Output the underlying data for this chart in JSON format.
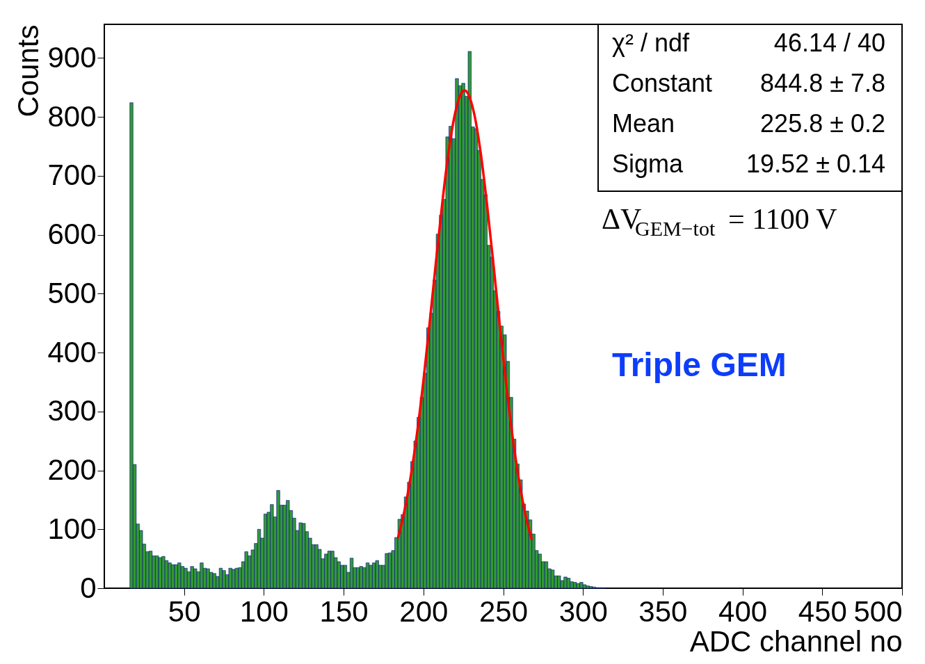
{
  "chart_data": {
    "type": "histogram",
    "xlabel": "ADC channel no",
    "ylabel": "Counts",
    "bins": [
      16,
      18,
      20,
      22,
      24,
      26,
      28,
      30,
      32,
      34,
      36,
      38,
      40,
      42,
      44,
      46,
      48,
      50,
      52,
      54,
      56,
      58,
      60,
      62,
      64,
      66,
      68,
      70,
      72,
      74,
      76,
      78,
      80,
      82,
      84,
      86,
      88,
      90,
      92,
      94,
      96,
      98,
      100,
      102,
      104,
      106,
      108,
      110,
      112,
      114,
      116,
      118,
      120,
      122,
      124,
      126,
      128,
      130,
      132,
      134,
      136,
      138,
      140,
      142,
      144,
      146,
      148,
      150,
      152,
      154,
      156,
      158,
      160,
      162,
      164,
      166,
      168,
      170,
      172,
      174,
      176,
      178,
      180,
      182,
      184,
      186,
      188,
      190,
      192,
      194,
      196,
      198,
      200,
      202,
      204,
      206,
      208,
      210,
      212,
      214,
      216,
      218,
      220,
      222,
      224,
      226,
      228,
      230,
      232,
      234,
      236,
      238,
      240,
      242,
      244,
      246,
      248,
      250,
      252,
      254,
      256,
      258,
      260,
      262,
      264,
      266,
      268,
      270,
      272,
      274,
      276,
      278,
      280,
      282,
      284,
      286,
      288,
      290,
      292,
      294,
      296,
      298,
      300,
      302,
      304,
      306,
      308,
      310,
      312,
      314
    ],
    "series": [
      {
        "color": "#339933",
        "values": [
          824,
          210,
          109,
          98,
          75,
          62,
          63,
          55,
          55,
          52,
          54,
          47,
          43,
          40,
          40,
          43,
          37,
          34,
          28,
          37,
          33,
          28,
          43,
          34,
          33,
          27,
          25,
          20,
          34,
          30,
          23,
          34,
          32,
          34,
          35,
          45,
          62,
          55,
          65,
          76,
          100,
          85,
          126,
          129,
          142,
          121,
          166,
          141,
          141,
          149,
          132,
          119,
          98,
          111,
          110,
          96,
          85,
          74,
          74,
          66,
          50,
          58,
          63,
          63,
          52,
          45,
          39,
          39,
          27,
          51,
          35,
          35,
          37,
          35,
          43,
          39,
          43,
          47,
          39,
          39,
          59,
          60,
          64,
          86,
          117,
          125,
          155,
          180,
          215,
          250,
          290,
          324,
          365,
          442,
          467,
          523,
          601,
          633,
          660,
          766,
          784,
          763,
          865,
          853,
          857,
          835,
          911,
          783,
          780,
          743,
          694,
          668,
          582,
          562,
          505,
          470,
          445,
          430,
          385,
          324,
          253,
          211,
          184,
          143,
          131,
          116,
          92,
          64,
          58,
          45,
          45,
          33,
          31,
          21,
          21,
          13,
          19,
          17,
          11,
          10,
          8,
          10,
          6,
          4,
          3,
          2,
          1,
          1,
          1
        ]
      },
      {
        "type": "line",
        "color": "#ff0000",
        "x": [
          184,
          188,
          192,
          196,
          200,
          204,
          208,
          212,
          216,
          220,
          224,
          226,
          228,
          232,
          236,
          240,
          244,
          248,
          252,
          256,
          260,
          264,
          268
        ],
        "values": [
          85,
          130,
          189,
          263,
          352,
          453,
          557,
          658,
          745,
          808,
          841,
          845,
          839,
          803,
          737,
          648,
          547,
          442,
          343,
          255,
          182,
          124,
          82
        ]
      }
    ],
    "xlim": [
      0,
      500
    ],
    "ylim": [
      0,
      957
    ],
    "xticks": [
      50,
      100,
      150,
      200,
      250,
      300,
      350,
      400,
      450,
      500
    ],
    "yticks": [
      0,
      100,
      200,
      300,
      400,
      500,
      600,
      700,
      800,
      900
    ],
    "grid": false,
    "annotations": [
      "χ² / ndf",
      "46.14 / 40",
      "Constant",
      "844.8 ± 7.8",
      "Mean",
      "225.8 ± 0.2",
      "Sigma",
      "19.52 ± 0.14",
      "ΔV$_{GEM−tot}$ = 1100 V",
      "Triple GEM"
    ]
  }
}
